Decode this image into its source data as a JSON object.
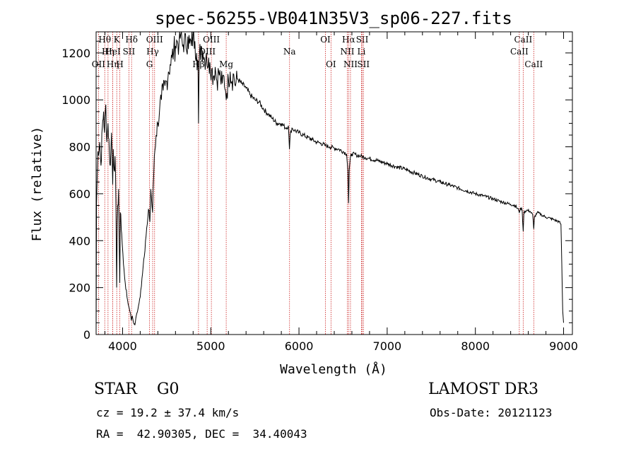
{
  "chart_data": {
    "type": "line",
    "title": "spec-56255-VB041N35V3_sp06-227.fits",
    "xlabel": "Wavelength (Å)",
    "ylabel": "Flux (relative)",
    "xlim": [
      3700,
      9100
    ],
    "ylim": [
      0,
      1290
    ],
    "xticks": [
      4000,
      5000,
      6000,
      7000,
      8000,
      9000
    ],
    "yticks": [
      0,
      200,
      400,
      600,
      800,
      1000,
      1200
    ],
    "series": [
      {
        "name": "flux",
        "points": [
          [
            3700,
            0
          ],
          [
            3705,
            560
          ],
          [
            3720,
            780
          ],
          [
            3740,
            820
          ],
          [
            3755,
            720
          ],
          [
            3770,
            880
          ],
          [
            3785,
            950
          ],
          [
            3795,
            860
          ],
          [
            3810,
            980
          ],
          [
            3822,
            820
          ],
          [
            3835,
            900
          ],
          [
            3850,
            780
          ],
          [
            3862,
            720
          ],
          [
            3875,
            860
          ],
          [
            3888,
            640
          ],
          [
            3895,
            790
          ],
          [
            3905,
            700
          ],
          [
            3915,
            760
          ],
          [
            3925,
            540
          ],
          [
            3933,
            200
          ],
          [
            3940,
            480
          ],
          [
            3955,
            620
          ],
          [
            3968,
            220
          ],
          [
            3975,
            520
          ],
          [
            3990,
            430
          ],
          [
            4010,
            300
          ],
          [
            4030,
            220
          ],
          [
            4050,
            160
          ],
          [
            4070,
            120
          ],
          [
            4090,
            90
          ],
          [
            4100,
            60
          ],
          [
            4110,
            80
          ],
          [
            4125,
            50
          ],
          [
            4140,
            40
          ],
          [
            4155,
            80
          ],
          [
            4175,
            110
          ],
          [
            4200,
            160
          ],
          [
            4220,
            240
          ],
          [
            4240,
            320
          ],
          [
            4260,
            400
          ],
          [
            4280,
            470
          ],
          [
            4300,
            530
          ],
          [
            4310,
            480
          ],
          [
            4320,
            620
          ],
          [
            4340,
            520
          ],
          [
            4360,
            760
          ],
          [
            4380,
            850
          ],
          [
            4400,
            900
          ],
          [
            4420,
            960
          ],
          [
            4440,
            1000
          ],
          [
            4460,
            1040
          ],
          [
            4480,
            1060
          ],
          [
            4500,
            1080
          ],
          [
            4520,
            1120
          ],
          [
            4540,
            1150
          ],
          [
            4560,
            1180
          ],
          [
            4580,
            1210
          ],
          [
            4600,
            1230
          ],
          [
            4620,
            1250
          ],
          [
            4640,
            1240
          ],
          [
            4660,
            1280
          ],
          [
            4680,
            1230
          ],
          [
            4700,
            1260
          ],
          [
            4720,
            1220
          ],
          [
            4740,
            1270
          ],
          [
            4760,
            1240
          ],
          [
            4780,
            1230
          ],
          [
            4800,
            1280
          ],
          [
            4820,
            1250
          ],
          [
            4840,
            1200
          ],
          [
            4855,
            1150
          ],
          [
            4861,
            900
          ],
          [
            4870,
            1180
          ],
          [
            4890,
            1230
          ],
          [
            4910,
            1210
          ],
          [
            4930,
            1170
          ],
          [
            4950,
            1200
          ],
          [
            4970,
            1140
          ],
          [
            4990,
            1160
          ],
          [
            5010,
            1130
          ],
          [
            5030,
            1100
          ],
          [
            5050,
            1140
          ],
          [
            5070,
            1080
          ],
          [
            5090,
            1120
          ],
          [
            5110,
            1090
          ],
          [
            5130,
            1070
          ],
          [
            5150,
            1100
          ],
          [
            5167,
            1040
          ],
          [
            5175,
            1000
          ],
          [
            5183,
            1030
          ],
          [
            5200,
            1090
          ],
          [
            5220,
            1120
          ],
          [
            5240,
            1080
          ],
          [
            5260,
            1110
          ],
          [
            5280,
            1060
          ],
          [
            5300,
            1090
          ],
          [
            5350,
            1070
          ],
          [
            5400,
            1050
          ],
          [
            5450,
            1020
          ],
          [
            5500,
            1000
          ],
          [
            5550,
            990
          ],
          [
            5600,
            960
          ],
          [
            5650,
            940
          ],
          [
            5700,
            920
          ],
          [
            5750,
            900
          ],
          [
            5800,
            900
          ],
          [
            5850,
            880
          ],
          [
            5880,
            890
          ],
          [
            5892,
            790
          ],
          [
            5900,
            850
          ],
          [
            5920,
            880
          ],
          [
            5950,
            870
          ],
          [
            6000,
            860
          ],
          [
            6050,
            850
          ],
          [
            6100,
            840
          ],
          [
            6150,
            830
          ],
          [
            6200,
            820
          ],
          [
            6250,
            815
          ],
          [
            6300,
            805
          ],
          [
            6350,
            800
          ],
          [
            6400,
            795
          ],
          [
            6450,
            790
          ],
          [
            6500,
            780
          ],
          [
            6540,
            770
          ],
          [
            6555,
            700
          ],
          [
            6563,
            560
          ],
          [
            6570,
            700
          ],
          [
            6585,
            760
          ],
          [
            6600,
            770
          ],
          [
            6650,
            765
          ],
          [
            6700,
            760
          ],
          [
            6750,
            755
          ],
          [
            6800,
            750
          ],
          [
            6900,
            740
          ],
          [
            7000,
            728
          ],
          [
            7100,
            715
          ],
          [
            7200,
            705
          ],
          [
            7300,
            690
          ],
          [
            7400,
            675
          ],
          [
            7500,
            662
          ],
          [
            7600,
            650
          ],
          [
            7700,
            638
          ],
          [
            7800,
            625
          ],
          [
            7900,
            612
          ],
          [
            8000,
            600
          ],
          [
            8100,
            590
          ],
          [
            8200,
            578
          ],
          [
            8300,
            565
          ],
          [
            8400,
            555
          ],
          [
            8450,
            550
          ],
          [
            8490,
            530
          ],
          [
            8498,
            520
          ],
          [
            8510,
            540
          ],
          [
            8530,
            530
          ],
          [
            8542,
            440
          ],
          [
            8550,
            520
          ],
          [
            8580,
            530
          ],
          [
            8620,
            525
          ],
          [
            8650,
            510
          ],
          [
            8662,
            450
          ],
          [
            8670,
            500
          ],
          [
            8700,
            520
          ],
          [
            8750,
            510
          ],
          [
            8800,
            500
          ],
          [
            8850,
            495
          ],
          [
            8900,
            488
          ],
          [
            8950,
            480
          ],
          [
            8970,
            470
          ],
          [
            8980,
            300
          ],
          [
            8990,
            100
          ],
          [
            9000,
            50
          ]
        ]
      }
    ],
    "lines": [
      {
        "label": "Hθ",
        "wave": 3798,
        "row": 0
      },
      {
        "label": "OII",
        "wave": 3727,
        "row": 2
      },
      {
        "label": "Hη",
        "wave": 3835,
        "row": 1
      },
      {
        "label": "K",
        "wave": 3934,
        "row": 0
      },
      {
        "label": "HeI",
        "wave": 3889,
        "row": 1
      },
      {
        "label": "Hη",
        "wave": 3889,
        "row": 2
      },
      {
        "label": "SII",
        "wave": 4072,
        "row": 1
      },
      {
        "label": "H",
        "wave": 3969,
        "row": 2
      },
      {
        "label": "Hδ",
        "wave": 4102,
        "row": 0
      },
      {
        "label": "OIII",
        "wave": 4363,
        "row": 0
      },
      {
        "label": "Hγ",
        "wave": 4341,
        "row": 1
      },
      {
        "label": "G",
        "wave": 4305,
        "row": 2
      },
      {
        "label": "Hβ",
        "wave": 4861,
        "row": 2
      },
      {
        "label": "OIII",
        "wave": 5007,
        "row": 0
      },
      {
        "label": "OIII",
        "wave": 4959,
        "row": 1
      },
      {
        "label": "Mg",
        "wave": 5175,
        "row": 2
      },
      {
        "label": "Na",
        "wave": 5893,
        "row": 1
      },
      {
        "label": "OI",
        "wave": 6300,
        "row": 0
      },
      {
        "label": "OI",
        "wave": 6363,
        "row": 2
      },
      {
        "label": "Hα",
        "wave": 6563,
        "row": 0
      },
      {
        "label": "NII",
        "wave": 6548,
        "row": 1
      },
      {
        "label": "NII",
        "wave": 6584,
        "row": 2
      },
      {
        "label": "SII",
        "wave": 6717,
        "row": 0
      },
      {
        "label": "Li",
        "wave": 6708,
        "row": 1
      },
      {
        "label": "SII",
        "wave": 6731,
        "row": 2
      },
      {
        "label": "CaII",
        "wave": 8542,
        "row": 0
      },
      {
        "label": "CaII",
        "wave": 8498,
        "row": 1
      },
      {
        "label": "CaII",
        "wave": 8662,
        "row": 2
      }
    ]
  },
  "footer": {
    "class_text": "STAR    G0",
    "survey": "LAMOST DR3",
    "cz": "cz = 19.2 ± 37.4 km/s",
    "obs_date": "Obs-Date: 20121123",
    "radec": "RA =  42.90305, DEC =  34.40043"
  }
}
